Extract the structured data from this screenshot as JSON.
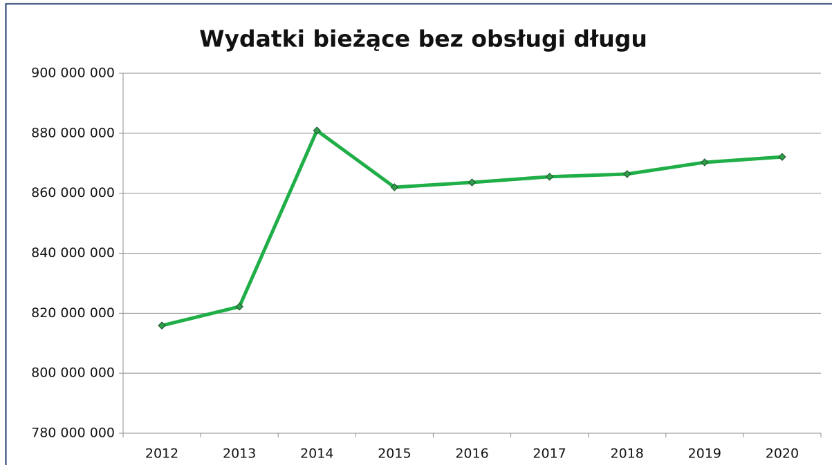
{
  "chart_data": {
    "type": "line",
    "title": "Wydatki bieżące bez obsługi długu",
    "categories": [
      "2012",
      "2013",
      "2014",
      "2015",
      "2016",
      "2017",
      "2018",
      "2019",
      "2020"
    ],
    "values": [
      815900000,
      822200000,
      880900000,
      862000000,
      863600000,
      865500000,
      866400000,
      870300000,
      872100000
    ],
    "color": "#1fae47",
    "marker_color": "#2e9e4a",
    "ylim": [
      780000000,
      900000000
    ],
    "yticks": [
      {
        "value": 780000000,
        "label": "780 000 000"
      },
      {
        "value": 800000000,
        "label": "800 000 000"
      },
      {
        "value": 820000000,
        "label": "820 000 000"
      },
      {
        "value": 840000000,
        "label": "840 000 000"
      },
      {
        "value": 860000000,
        "label": "860 000 000"
      },
      {
        "value": 880000000,
        "label": "880 000 000"
      },
      {
        "value": 900000000,
        "label": "900 000 000"
      }
    ],
    "grid": true
  }
}
